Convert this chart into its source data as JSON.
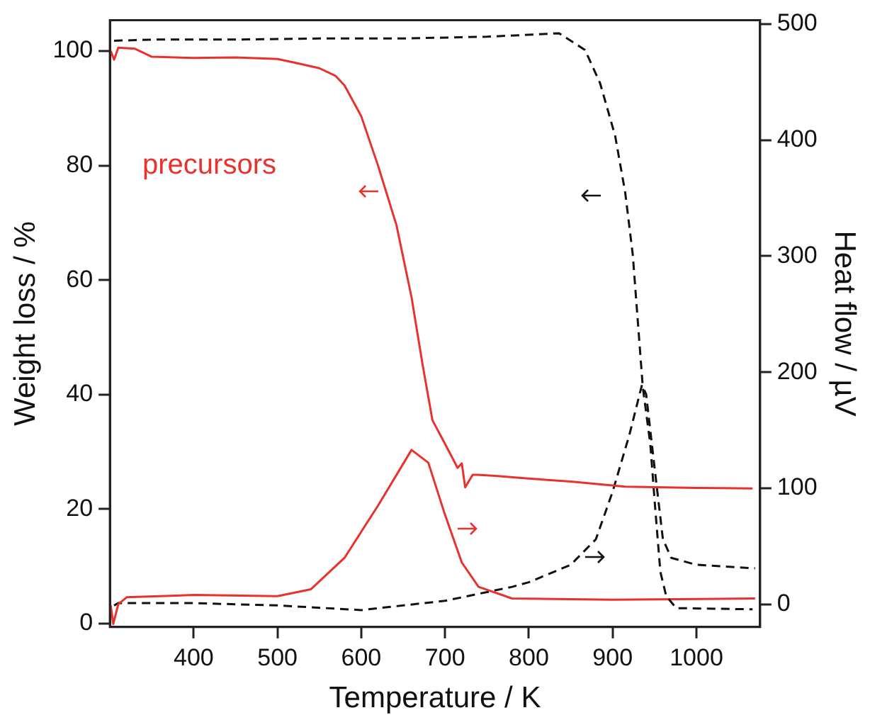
{
  "chart_data": {
    "type": "line",
    "xlabel": "Temperature / K",
    "ylabel": "Weight loss / %",
    "y2label": "Heat flow / µV",
    "xlim": [
      300,
      1076
    ],
    "xticks": [
      400,
      500,
      600,
      700,
      800,
      900,
      1000
    ],
    "ylim": [
      -0.6,
      105.4
    ],
    "yticks": [
      0,
      20,
      40,
      60,
      80,
      100
    ],
    "y2lim": [
      -19.6,
      503.3
    ],
    "y2ticks": [
      0,
      100,
      200,
      300,
      400,
      500
    ],
    "grid": false,
    "legend": false,
    "marker": "none",
    "series": [
      {
        "name": "precursors",
        "color": "#e8322d",
        "line_style": "solid",
        "x": [
          301,
          305,
          310,
          330,
          350,
          400,
          450,
          500,
          520,
          550,
          569,
          580,
          600,
          620,
          642,
          660,
          673,
          685,
          697,
          715,
          720,
          724,
          733,
          739,
          760,
          794,
          850,
          915,
          1000,
          1067
        ],
        "values": [
          100,
          98.5,
          100.6,
          100.4,
          99,
          98.8,
          98.9,
          98.6,
          98,
          97,
          95.7,
          94,
          88.6,
          80,
          69.6,
          57,
          45.4,
          35.5,
          32.2,
          27.2,
          28,
          23.8,
          26,
          26,
          25.8,
          25.4,
          24.8,
          23.9,
          23.7,
          23.6
        ]
      },
      {
        "color": "#111111",
        "line_style": "dashed",
        "x": [
          305,
          350,
          450,
          550,
          650,
          750,
          836,
          867,
          885,
          903,
          915,
          924,
          933,
          936,
          945,
          951,
          957,
          964,
          976,
          1020,
          1067
        ],
        "values": [
          101.8,
          102,
          102,
          102.2,
          102.2,
          102.5,
          103.1,
          100.2,
          94.4,
          85.2,
          75.3,
          64.5,
          47.1,
          41.3,
          31.3,
          19.8,
          9,
          4.8,
          2.7,
          2.6,
          2.5
        ]
      },
      {
        "color": "#e8322d",
        "line_style": "solid",
        "axis": "y2",
        "x": [
          301,
          304,
          310,
          320,
          400,
          500,
          540,
          580,
          620,
          660,
          680,
          700,
          720,
          740,
          780,
          900,
          1070
        ],
        "values": [
          -1,
          -17,
          0,
          6,
          8,
          7,
          13,
          40,
          85,
          133,
          122,
          77,
          36,
          15,
          5,
          4,
          5
        ]
      },
      {
        "color": "#111111",
        "line_style": "dashed",
        "axis": "y2",
        "x": [
          305,
          310,
          400,
          500,
          600,
          700,
          780,
          800,
          850,
          880,
          900,
          920,
          935,
          940,
          950,
          960,
          970,
          1000,
          1070
        ],
        "values": [
          -1,
          1,
          1,
          -1,
          -5,
          3,
          15,
          19,
          34,
          56,
          97,
          146,
          189,
          181,
          118,
          56,
          40,
          34,
          31
        ]
      }
    ]
  }
}
